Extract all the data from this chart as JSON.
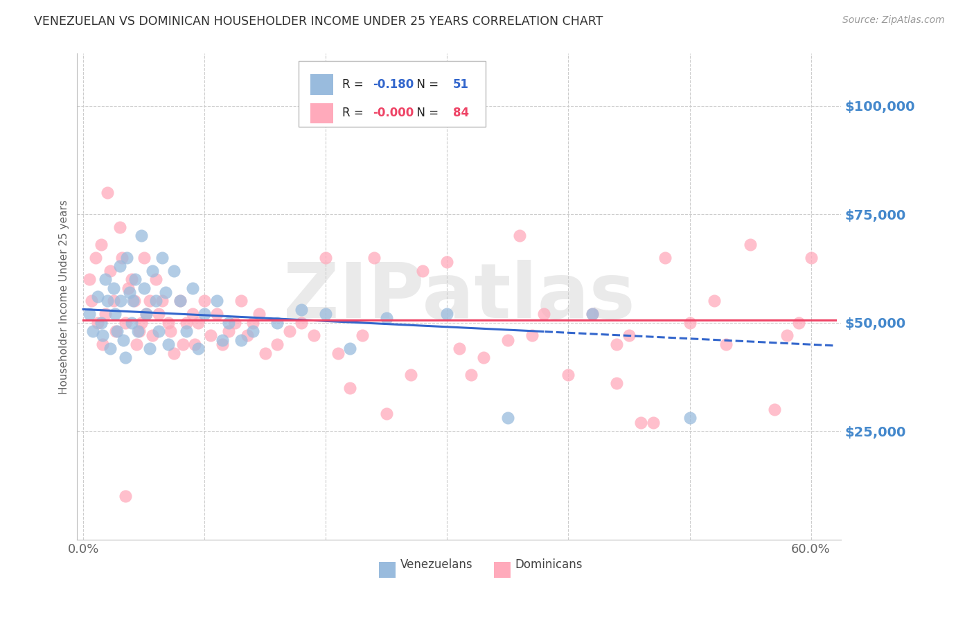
{
  "title": "VENEZUELAN VS DOMINICAN HOUSEHOLDER INCOME UNDER 25 YEARS CORRELATION CHART",
  "source": "Source: ZipAtlas.com",
  "ylabel": "Householder Income Under 25 years",
  "xlabel_ticks": [
    "0.0%",
    "",
    "",
    "",
    "",
    "",
    "60.0%"
  ],
  "xlabel_vals": [
    0.0,
    0.1,
    0.2,
    0.3,
    0.4,
    0.5,
    0.6
  ],
  "ytick_labels": [
    "$25,000",
    "$50,000",
    "$75,000",
    "$100,000"
  ],
  "ytick_vals": [
    25000,
    50000,
    75000,
    100000
  ],
  "ylim": [
    0,
    112000
  ],
  "xlim": [
    -0.005,
    0.625
  ],
  "r_venezuelan": -0.18,
  "n_venezuelan": 51,
  "r_dominican": -0.0,
  "n_dominican": 84,
  "legend_label_1": "Venezuelans",
  "legend_label_2": "Dominicans",
  "blue_scatter_color": "#99BBDD",
  "pink_scatter_color": "#FFAABB",
  "blue_line_color": "#3366CC",
  "pink_line_color": "#EE4466",
  "axis_tick_color": "#4488CC",
  "title_color": "#333333",
  "source_color": "#999999",
  "watermark": "ZIPatlas",
  "watermark_color": "#CCCCCC",
  "background_color": "#FFFFFF",
  "grid_color": "#CCCCCC",
  "venezuelan_x": [
    0.005,
    0.008,
    0.012,
    0.015,
    0.016,
    0.018,
    0.02,
    0.022,
    0.025,
    0.026,
    0.028,
    0.03,
    0.031,
    0.033,
    0.035,
    0.036,
    0.038,
    0.04,
    0.041,
    0.043,
    0.045,
    0.048,
    0.05,
    0.052,
    0.055,
    0.057,
    0.06,
    0.062,
    0.065,
    0.068,
    0.07,
    0.075,
    0.08,
    0.085,
    0.09,
    0.095,
    0.1,
    0.11,
    0.115,
    0.12,
    0.13,
    0.14,
    0.16,
    0.18,
    0.2,
    0.22,
    0.25,
    0.3,
    0.35,
    0.42,
    0.5
  ],
  "venezuelan_y": [
    52000,
    48000,
    56000,
    50000,
    47000,
    60000,
    55000,
    44000,
    58000,
    52000,
    48000,
    63000,
    55000,
    46000,
    42000,
    65000,
    57000,
    50000,
    55000,
    60000,
    48000,
    70000,
    58000,
    52000,
    44000,
    62000,
    55000,
    48000,
    65000,
    57000,
    45000,
    62000,
    55000,
    48000,
    58000,
    44000,
    52000,
    55000,
    46000,
    50000,
    46000,
    48000,
    50000,
    53000,
    52000,
    44000,
    51000,
    52000,
    28000,
    52000,
    28000
  ],
  "dominican_x": [
    0.005,
    0.007,
    0.01,
    0.012,
    0.015,
    0.016,
    0.018,
    0.02,
    0.022,
    0.025,
    0.027,
    0.03,
    0.032,
    0.035,
    0.037,
    0.04,
    0.042,
    0.044,
    0.046,
    0.048,
    0.05,
    0.052,
    0.055,
    0.057,
    0.06,
    0.062,
    0.065,
    0.07,
    0.072,
    0.075,
    0.08,
    0.082,
    0.085,
    0.09,
    0.092,
    0.095,
    0.1,
    0.105,
    0.11,
    0.115,
    0.12,
    0.125,
    0.13,
    0.135,
    0.14,
    0.145,
    0.15,
    0.16,
    0.17,
    0.18,
    0.19,
    0.2,
    0.21,
    0.22,
    0.23,
    0.25,
    0.27,
    0.28,
    0.3,
    0.31,
    0.32,
    0.33,
    0.35,
    0.36,
    0.37,
    0.38,
    0.4,
    0.42,
    0.44,
    0.45,
    0.46,
    0.48,
    0.5,
    0.52,
    0.53,
    0.55,
    0.57,
    0.58,
    0.59,
    0.6,
    0.035,
    0.24,
    0.44,
    0.47
  ],
  "dominican_y": [
    60000,
    55000,
    65000,
    50000,
    68000,
    45000,
    52000,
    80000,
    62000,
    55000,
    48000,
    72000,
    65000,
    50000,
    58000,
    60000,
    55000,
    45000,
    48000,
    50000,
    65000,
    52000,
    55000,
    47000,
    60000,
    52000,
    55000,
    50000,
    48000,
    43000,
    55000,
    45000,
    50000,
    52000,
    45000,
    50000,
    55000,
    47000,
    52000,
    45000,
    48000,
    50000,
    55000,
    47000,
    50000,
    52000,
    43000,
    45000,
    48000,
    50000,
    47000,
    65000,
    43000,
    35000,
    47000,
    29000,
    38000,
    62000,
    64000,
    44000,
    38000,
    42000,
    46000,
    70000,
    47000,
    52000,
    38000,
    52000,
    36000,
    47000,
    27000,
    65000,
    50000,
    55000,
    45000,
    68000,
    30000,
    47000,
    50000,
    65000,
    10000,
    65000,
    45000,
    27000
  ]
}
